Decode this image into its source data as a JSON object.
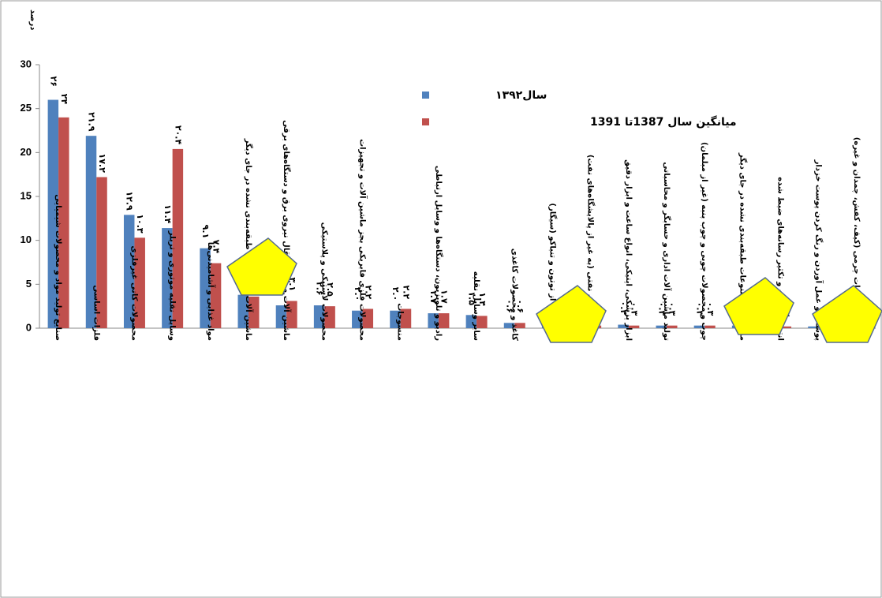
{
  "chart_data": {
    "type": "bar",
    "y_label": "درصد",
    "categories": [
      "صنایع تولید مواد و محصولات شیمیایی",
      "فلزات اساسی",
      "محصولات کانی غیرفلزی",
      "وسایل نقلیه موتوری و تریلر",
      "مواد غذایی و آشامیدنی‌ها",
      "ماشین آلات و تجهیزات طبقه‌بندی نشده در جای دیگر",
      "ماشین آلات مولد و انتقال نیروی برق و دستگاه‌های برقی",
      "محصولات لاستیکی و پلاستیکی",
      "محصولات فلزی فابریکی بجز ماشین آلات و تجهیزات",
      "منسوجات",
      "رادیو و تلویزیون، دستگاه‌ها و وسایل ارتباطی",
      "سایر وسایل نقلیه",
      "کاغذ و محصولات کاغذی",
      "محصولات از توتون و تنباکو (سیگار)",
      "فرآورده‌های نفتی (به غیر از پالایشگاه‌های نفت)",
      "ابزار پزشکی، اپتیکی، انواع ساعت و ابزار دقیق",
      "تولید ماشین آلات اداری و حسابگر و محاسباتی",
      "چوب و محصولات چوبی و چوب پنبه (غیر از مبلمان)",
      "مبلمان و مصنوعات طبقه‌بندی نشده در جای دیگر",
      "انتشار و چاپ و تکثیر رسانه‌های ضبط شده",
      "پوشاک و عمل آوردن و رنگ کردن پوست خزدار",
      "چرم و مصنوعات چرمی (کیف، کفش، چمدان و غیره)"
    ],
    "series": [
      {
        "name": "سال۱۳۹۲",
        "color": "#4f81bd",
        "values": [
          26,
          21.9,
          12.9,
          11.4,
          9.1,
          3.8,
          2.6,
          2.6,
          2.0,
          2.0,
          1.7,
          1.5,
          0.6,
          0.4,
          0.4,
          0.4,
          0.3,
          0.3,
          0.3,
          0.2,
          0.2,
          0.1
        ],
        "value_labels": [
          "۲۶",
          "۲۱.۹",
          "۱۲.۹",
          "۱۱.۴",
          "۹.۱",
          null,
          "۲.۶",
          "۲.۶",
          "۲.۰",
          "۲.۰",
          "۱.۷",
          "۱.۵",
          "۰.۶",
          null,
          null,
          "۰.۴",
          "۰.۳",
          "۰.۳",
          null,
          "۰.۲",
          null,
          null
        ]
      },
      {
        "name": "میانگین سال 1387تا 1391",
        "color": "#c0504d",
        "values": [
          24,
          17.2,
          10.3,
          20.4,
          7.4,
          3.6,
          3.1,
          2.5,
          2.2,
          2.2,
          1.7,
          1.4,
          0.6,
          0.3,
          0.3,
          0.3,
          0.3,
          0.3,
          0.2,
          0.2,
          0.2,
          0.1
        ],
        "value_labels": [
          "۲۴",
          "۱۷.۲",
          "۱۰.۳",
          "۲۰.۴",
          "۷.۴",
          null,
          "۳.۱",
          "۲.۵",
          "۲.۲",
          "۲.۲",
          "۱.۷",
          "۱.۴",
          "۰.۶",
          null,
          "۰.۳",
          "۰.۳",
          "۰.۳",
          "۰.۳",
          null,
          "۰.۲",
          null,
          null
        ]
      }
    ],
    "ylim": [
      0,
      30
    ],
    "yticks": [
      0,
      5,
      10,
      15,
      20,
      25,
      30
    ]
  }
}
